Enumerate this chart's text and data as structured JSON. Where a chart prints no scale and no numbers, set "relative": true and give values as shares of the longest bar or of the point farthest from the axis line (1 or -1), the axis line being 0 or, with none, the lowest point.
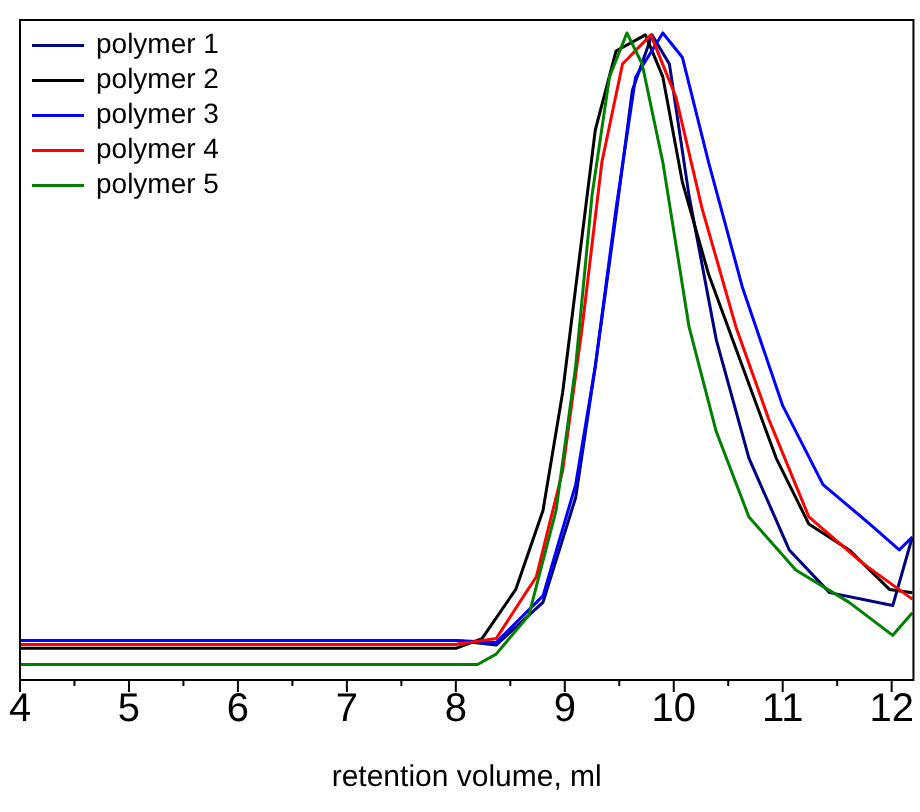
{
  "chart_data": {
    "type": "line",
    "xlabel": "retention volume, ml",
    "relative": true,
    "xlim": [
      4,
      12.2
    ],
    "xticks": [
      4,
      {
        "value": 4.5,
        "label": null
      },
      5,
      {
        "value": 5.5,
        "label": null
      },
      6,
      {
        "value": 6.5,
        "label": null
      },
      7,
      {
        "value": 7.5,
        "label": null
      },
      8,
      {
        "value": 8.5,
        "label": null
      },
      9,
      {
        "value": 9.5,
        "label": null
      },
      10,
      {
        "value": 10.5,
        "label": null
      },
      11,
      {
        "value": 11.5,
        "label": null
      },
      12
    ],
    "tick_labels": "x",
    "grid": false,
    "legend": "top left",
    "marker": "none",
    "line_style": "solid",
    "series": [
      {
        "name": "polymer 1",
        "color": "#000080",
        "x": [
          4,
          6,
          8,
          8.37,
          8.8,
          9.1,
          9.28,
          9.47,
          9.62,
          9.8,
          9.96,
          10.14,
          10.39,
          10.69,
          11.06,
          11.43,
          12.01,
          12.19
        ],
        "values": [
          0.061,
          0.061,
          0.061,
          0.054,
          0.12,
          0.282,
          0.485,
          0.718,
          0.911,
          0.997,
          0.952,
          0.749,
          0.526,
          0.343,
          0.201,
          0.135,
          0.115,
          0.221
        ]
      },
      {
        "name": "polymer 2",
        "color": "#000000",
        "x": [
          4,
          6,
          8,
          8.24,
          8.55,
          8.8,
          8.98,
          9.13,
          9.28,
          9.47,
          9.74,
          9.9,
          10.08,
          10.32,
          10.63,
          10.94,
          11.24,
          11.61,
          11.98,
          12.19
        ],
        "values": [
          0.049,
          0.049,
          0.049,
          0.064,
          0.14,
          0.262,
          0.444,
          0.647,
          0.85,
          0.972,
          0.997,
          0.932,
          0.769,
          0.627,
          0.485,
          0.343,
          0.241,
          0.201,
          0.14,
          0.135
        ]
      },
      {
        "name": "polymer 3",
        "color": "#0000ff",
        "x": [
          4,
          6,
          8,
          8.37,
          8.8,
          9.1,
          9.28,
          9.47,
          9.65,
          9.9,
          10.08,
          10.32,
          10.63,
          11.0,
          11.37,
          11.8,
          12.07,
          12.19
        ],
        "values": [
          0.061,
          0.061,
          0.061,
          0.058,
          0.13,
          0.302,
          0.485,
          0.728,
          0.932,
          1.0,
          0.962,
          0.8,
          0.607,
          0.424,
          0.302,
          0.241,
          0.201,
          0.221
        ]
      },
      {
        "name": "polymer 4",
        "color": "#ff0000",
        "x": [
          4,
          6,
          8,
          8.37,
          8.74,
          8.98,
          9.16,
          9.34,
          9.53,
          9.79,
          10.02,
          10.26,
          10.57,
          10.87,
          11.24,
          11.73,
          12.19
        ],
        "values": [
          0.055,
          0.055,
          0.055,
          0.064,
          0.16,
          0.323,
          0.546,
          0.8,
          0.952,
          0.997,
          0.901,
          0.729,
          0.546,
          0.404,
          0.252,
          0.181,
          0.125
        ]
      },
      {
        "name": "polymer 5",
        "color": "#008000",
        "x": [
          4,
          6,
          8.2,
          8.37,
          8.67,
          8.92,
          9.1,
          9.25,
          9.41,
          9.57,
          9.71,
          9.9,
          10.14,
          10.39,
          10.69,
          11.12,
          11.61,
          12.01,
          12.19
        ],
        "values": [
          0.024,
          0.024,
          0.024,
          0.04,
          0.1,
          0.262,
          0.485,
          0.749,
          0.932,
          1.0,
          0.952,
          0.8,
          0.546,
          0.384,
          0.252,
          0.17,
          0.12,
          0.069,
          0.104
        ]
      }
    ]
  }
}
